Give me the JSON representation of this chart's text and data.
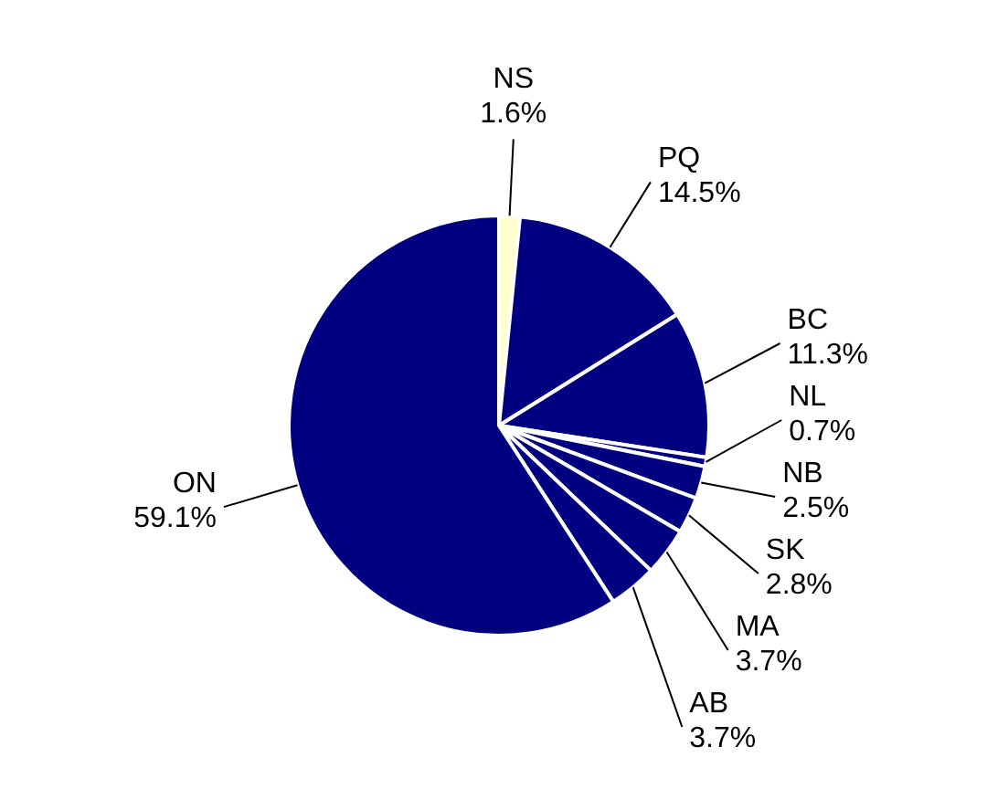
{
  "chart_data": {
    "type": "pie",
    "categories": [
      "NS",
      "PQ",
      "BC",
      "NL",
      "NB",
      "SK",
      "MA",
      "AB",
      "ON"
    ],
    "values": [
      1.6,
      14.5,
      11.3,
      0.7,
      2.5,
      2.8,
      3.7,
      3.7,
      59.1
    ],
    "value_labels": [
      "1.6%",
      "14.5%",
      "11.3%",
      "0.7%",
      "2.5%",
      "2.8%",
      "3.7%",
      "3.7%",
      "59.1%"
    ],
    "colors": [
      "#ffffcc",
      "#000080",
      "#000080",
      "#000080",
      "#000080",
      "#000080",
      "#000080",
      "#000080",
      "#000080"
    ],
    "legend": false
  }
}
